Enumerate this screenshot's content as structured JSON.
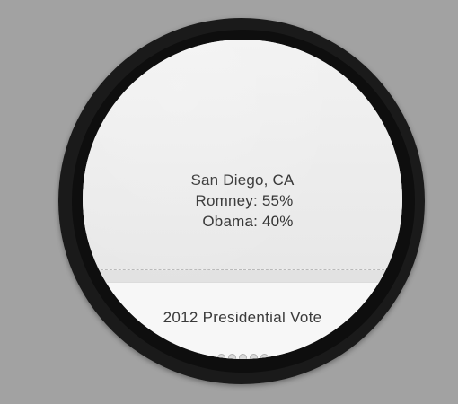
{
  "card": {
    "location": "San Diego, CA",
    "line_romney": "Romney: 55%",
    "line_obama": "Obama: 40%",
    "title": "2012 Presidential Vote"
  },
  "pager": {
    "dot_count": 5
  },
  "colors": {
    "background": "#a2a2a2",
    "screen": "#ececec",
    "text": "#2e2e2e"
  }
}
